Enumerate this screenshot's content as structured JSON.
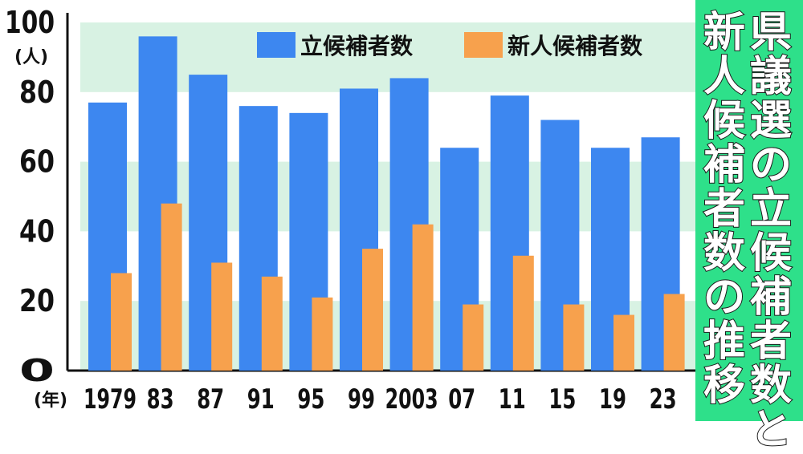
{
  "chart_data": {
    "type": "bar",
    "categories": [
      "1979",
      "83",
      "87",
      "91",
      "95",
      "99",
      "2003",
      "07",
      "11",
      "15",
      "19",
      "23"
    ],
    "series": [
      {
        "name": "立候補者数",
        "values": [
          77,
          96,
          85,
          76,
          74,
          81,
          84,
          64,
          79,
          72,
          64,
          67
        ],
        "color": "#3d87f0"
      },
      {
        "name": "新人候補者数",
        "values": [
          28,
          48,
          31,
          27,
          21,
          35,
          42,
          19,
          33,
          19,
          16,
          22
        ],
        "color": "#f7a14d"
      }
    ],
    "yticks": [
      "0",
      "20",
      "40",
      "60",
      "80",
      "100"
    ],
    "ylim": [
      0,
      100
    ],
    "y_unit": "(人)",
    "x_unit": "(年)",
    "legend_position": "top-right",
    "grid": "horizontal bands",
    "title_lines": [
      "県議選の立候補者数と",
      "新人候補者数の推移"
    ],
    "title_bg": "#2ee08a",
    "band_color": "#d8f2e3"
  }
}
